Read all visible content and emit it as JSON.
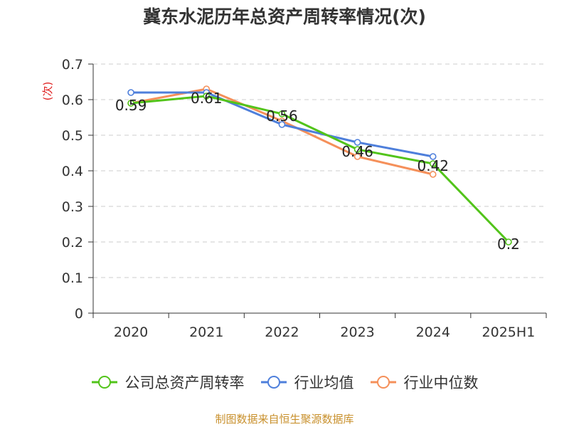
{
  "title": "冀东水泥历年总资产周转率情况(次)",
  "source": "制图数据来自恒生聚源数据库",
  "chart_data": {
    "type": "line",
    "title": "冀东水泥历年总资产周转率情况(次)",
    "ylabel": "(次)",
    "xlabel": "",
    "ylim": [
      0,
      0.7
    ],
    "yticks": [
      "0",
      "0.1",
      "0.2",
      "0.3",
      "0.4",
      "0.5",
      "0.6",
      "0.7"
    ],
    "grid": true,
    "legend_position": "bottom",
    "categories": [
      "2020",
      "2021",
      "2022",
      "2023",
      "2024",
      "2025H1"
    ],
    "series": [
      {
        "name": "公司总资产周转率",
        "color": "#52c41a",
        "values": [
          0.59,
          0.61,
          0.56,
          0.46,
          0.42,
          0.2
        ],
        "labels": [
          "0.59",
          "0.61",
          "0.56",
          "0.46",
          "0.42",
          "0.2"
        ]
      },
      {
        "name": "行业均值",
        "color": "#4e7fdb",
        "values": [
          0.62,
          0.62,
          0.53,
          0.48,
          0.44,
          null
        ]
      },
      {
        "name": "行业中位数",
        "color": "#f5905a",
        "values": [
          0.59,
          0.63,
          0.54,
          0.44,
          0.39,
          null
        ]
      }
    ]
  }
}
